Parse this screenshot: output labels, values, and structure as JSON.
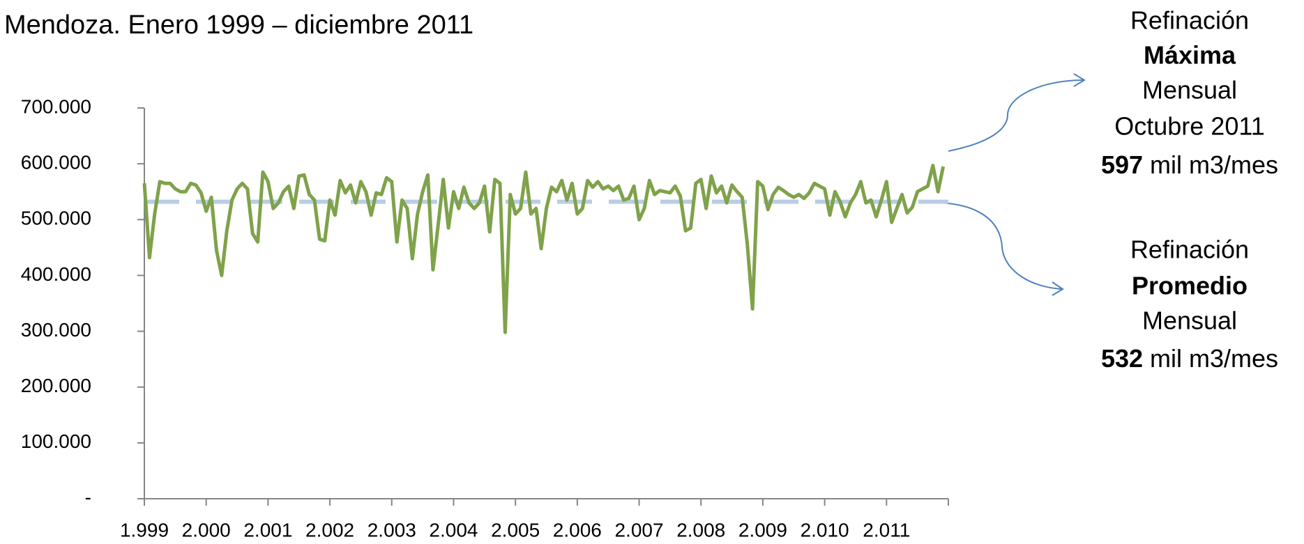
{
  "chart_data": {
    "type": "line",
    "title": "Mendoza. Enero 1999 – diciembre 2011",
    "categories": [
      "1.999",
      null,
      null,
      null,
      null,
      null,
      null,
      null,
      null,
      null,
      null,
      null,
      "2.000",
      null,
      null,
      null,
      null,
      null,
      null,
      null,
      null,
      null,
      null,
      null,
      "2.001",
      null,
      null,
      null,
      null,
      null,
      null,
      null,
      null,
      null,
      null,
      null,
      "2.002",
      null,
      null,
      null,
      null,
      null,
      null,
      null,
      null,
      null,
      null,
      null,
      "2.003",
      null,
      null,
      null,
      null,
      null,
      null,
      null,
      null,
      null,
      null,
      null,
      "2.004",
      null,
      null,
      null,
      null,
      null,
      null,
      null,
      null,
      null,
      null,
      null,
      "2.005",
      null,
      null,
      null,
      null,
      null,
      null,
      null,
      null,
      null,
      null,
      null,
      "2.006",
      null,
      null,
      null,
      null,
      null,
      null,
      null,
      null,
      null,
      null,
      null,
      "2.007",
      null,
      null,
      null,
      null,
      null,
      null,
      null,
      null,
      null,
      null,
      null,
      "2.008",
      null,
      null,
      null,
      null,
      null,
      null,
      null,
      null,
      null,
      null,
      null,
      "2.009",
      null,
      null,
      null,
      null,
      null,
      null,
      null,
      null,
      null,
      null,
      null,
      "2.010",
      null,
      null,
      null,
      null,
      null,
      null,
      null,
      null,
      null,
      null,
      null,
      "2.011",
      null,
      null,
      null,
      null,
      null,
      null,
      null,
      null,
      null,
      null,
      null
    ],
    "series": [
      {
        "color": "#7fa24a",
        "values": [
          565000,
          432000,
          510000,
          568000,
          565000,
          565000,
          555000,
          550000,
          550000,
          565000,
          562000,
          548000,
          515000,
          540000,
          445000,
          400000,
          480000,
          535000,
          555000,
          565000,
          555000,
          475000,
          460000,
          585000,
          568000,
          520000,
          530000,
          550000,
          560000,
          520000,
          578000,
          580000,
          545000,
          535000,
          465000,
          462000,
          535000,
          508000,
          570000,
          548000,
          562000,
          530000,
          568000,
          550000,
          508000,
          548000,
          545000,
          575000,
          568000,
          460000,
          535000,
          520000,
          430000,
          510000,
          550000,
          580000,
          410000,
          490000,
          572000,
          485000,
          550000,
          520000,
          558000,
          530000,
          520000,
          530000,
          560000,
          478000,
          572000,
          565000,
          298000,
          545000,
          510000,
          520000,
          585000,
          510000,
          520000,
          448000,
          520000,
          558000,
          550000,
          570000,
          535000,
          565000,
          510000,
          520000,
          570000,
          558000,
          568000,
          555000,
          560000,
          552000,
          560000,
          535000,
          538000,
          560000,
          500000,
          520000,
          570000,
          545000,
          552000,
          550000,
          548000,
          560000,
          542000,
          480000,
          485000,
          565000,
          572000,
          520000,
          578000,
          548000,
          560000,
          530000,
          562000,
          550000,
          540000,
          455000,
          340000,
          568000,
          560000,
          518000,
          545000,
          558000,
          552000,
          545000,
          540000,
          545000,
          538000,
          548000,
          565000,
          560000,
          555000,
          508000,
          550000,
          532000,
          505000,
          530000,
          545000,
          568000,
          530000,
          535000,
          505000,
          535000,
          568000,
          495000,
          520000,
          545000,
          512000,
          522000,
          550000,
          555000,
          560000,
          597000,
          550000,
          595000
        ]
      }
    ],
    "average": {
      "value": 532000,
      "color": "#b9cde5"
    },
    "ylim": [
      0,
      700000
    ],
    "yticks": [
      {
        "value": 0,
        "label": "-"
      },
      {
        "value": 100000,
        "label": "100.000"
      },
      {
        "value": 200000,
        "label": "200.000"
      },
      {
        "value": 300000,
        "label": "300.000"
      },
      {
        "value": 400000,
        "label": "400.000"
      },
      {
        "value": 500000,
        "label": "500.000"
      },
      {
        "value": 600000,
        "label": "600.000"
      },
      {
        "value": 700000,
        "label": "700.000"
      }
    ],
    "annotations": {
      "max": {
        "lines": [
          "Refinación",
          "Máxima",
          "Mensual",
          "Octubre 2011"
        ],
        "value": 597,
        "unit": "mil m3/mes"
      },
      "mean": {
        "lines": [
          "Refinación",
          "Promedio",
          "Mensual"
        ],
        "value": 532,
        "unit": "mil m3/mes"
      }
    }
  }
}
